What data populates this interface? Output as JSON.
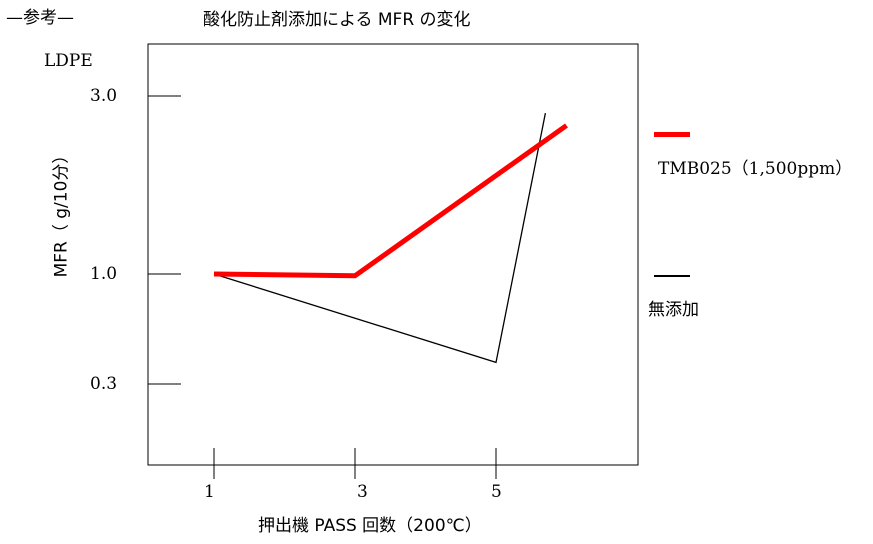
{
  "header": {
    "reference_label": "—参考—",
    "material_label": "LDPE"
  },
  "chart_data": {
    "type": "line",
    "title": "酸化防止剤添加による MFR の変化",
    "xlabel": "押出機 PASS 回数（200℃）",
    "ylabel": "MFR（ g/10分）",
    "x_ticks": [
      "1",
      "3",
      "5"
    ],
    "y_ticks": [
      "3.0",
      "1.0",
      "0.3"
    ],
    "y_scale": "log",
    "grid": false,
    "legend_position": "right",
    "series": [
      {
        "name": "TMB025（1,500ppm）",
        "color": "#ff0000",
        "points": [
          [
            1,
            1.0
          ],
          [
            3,
            0.98
          ],
          [
            6,
            2.5
          ]
        ]
      },
      {
        "name": "無添加",
        "color": "#000000",
        "points": [
          [
            1,
            1.0
          ],
          [
            5,
            0.38
          ],
          [
            5.7,
            2.7
          ]
        ]
      }
    ]
  }
}
